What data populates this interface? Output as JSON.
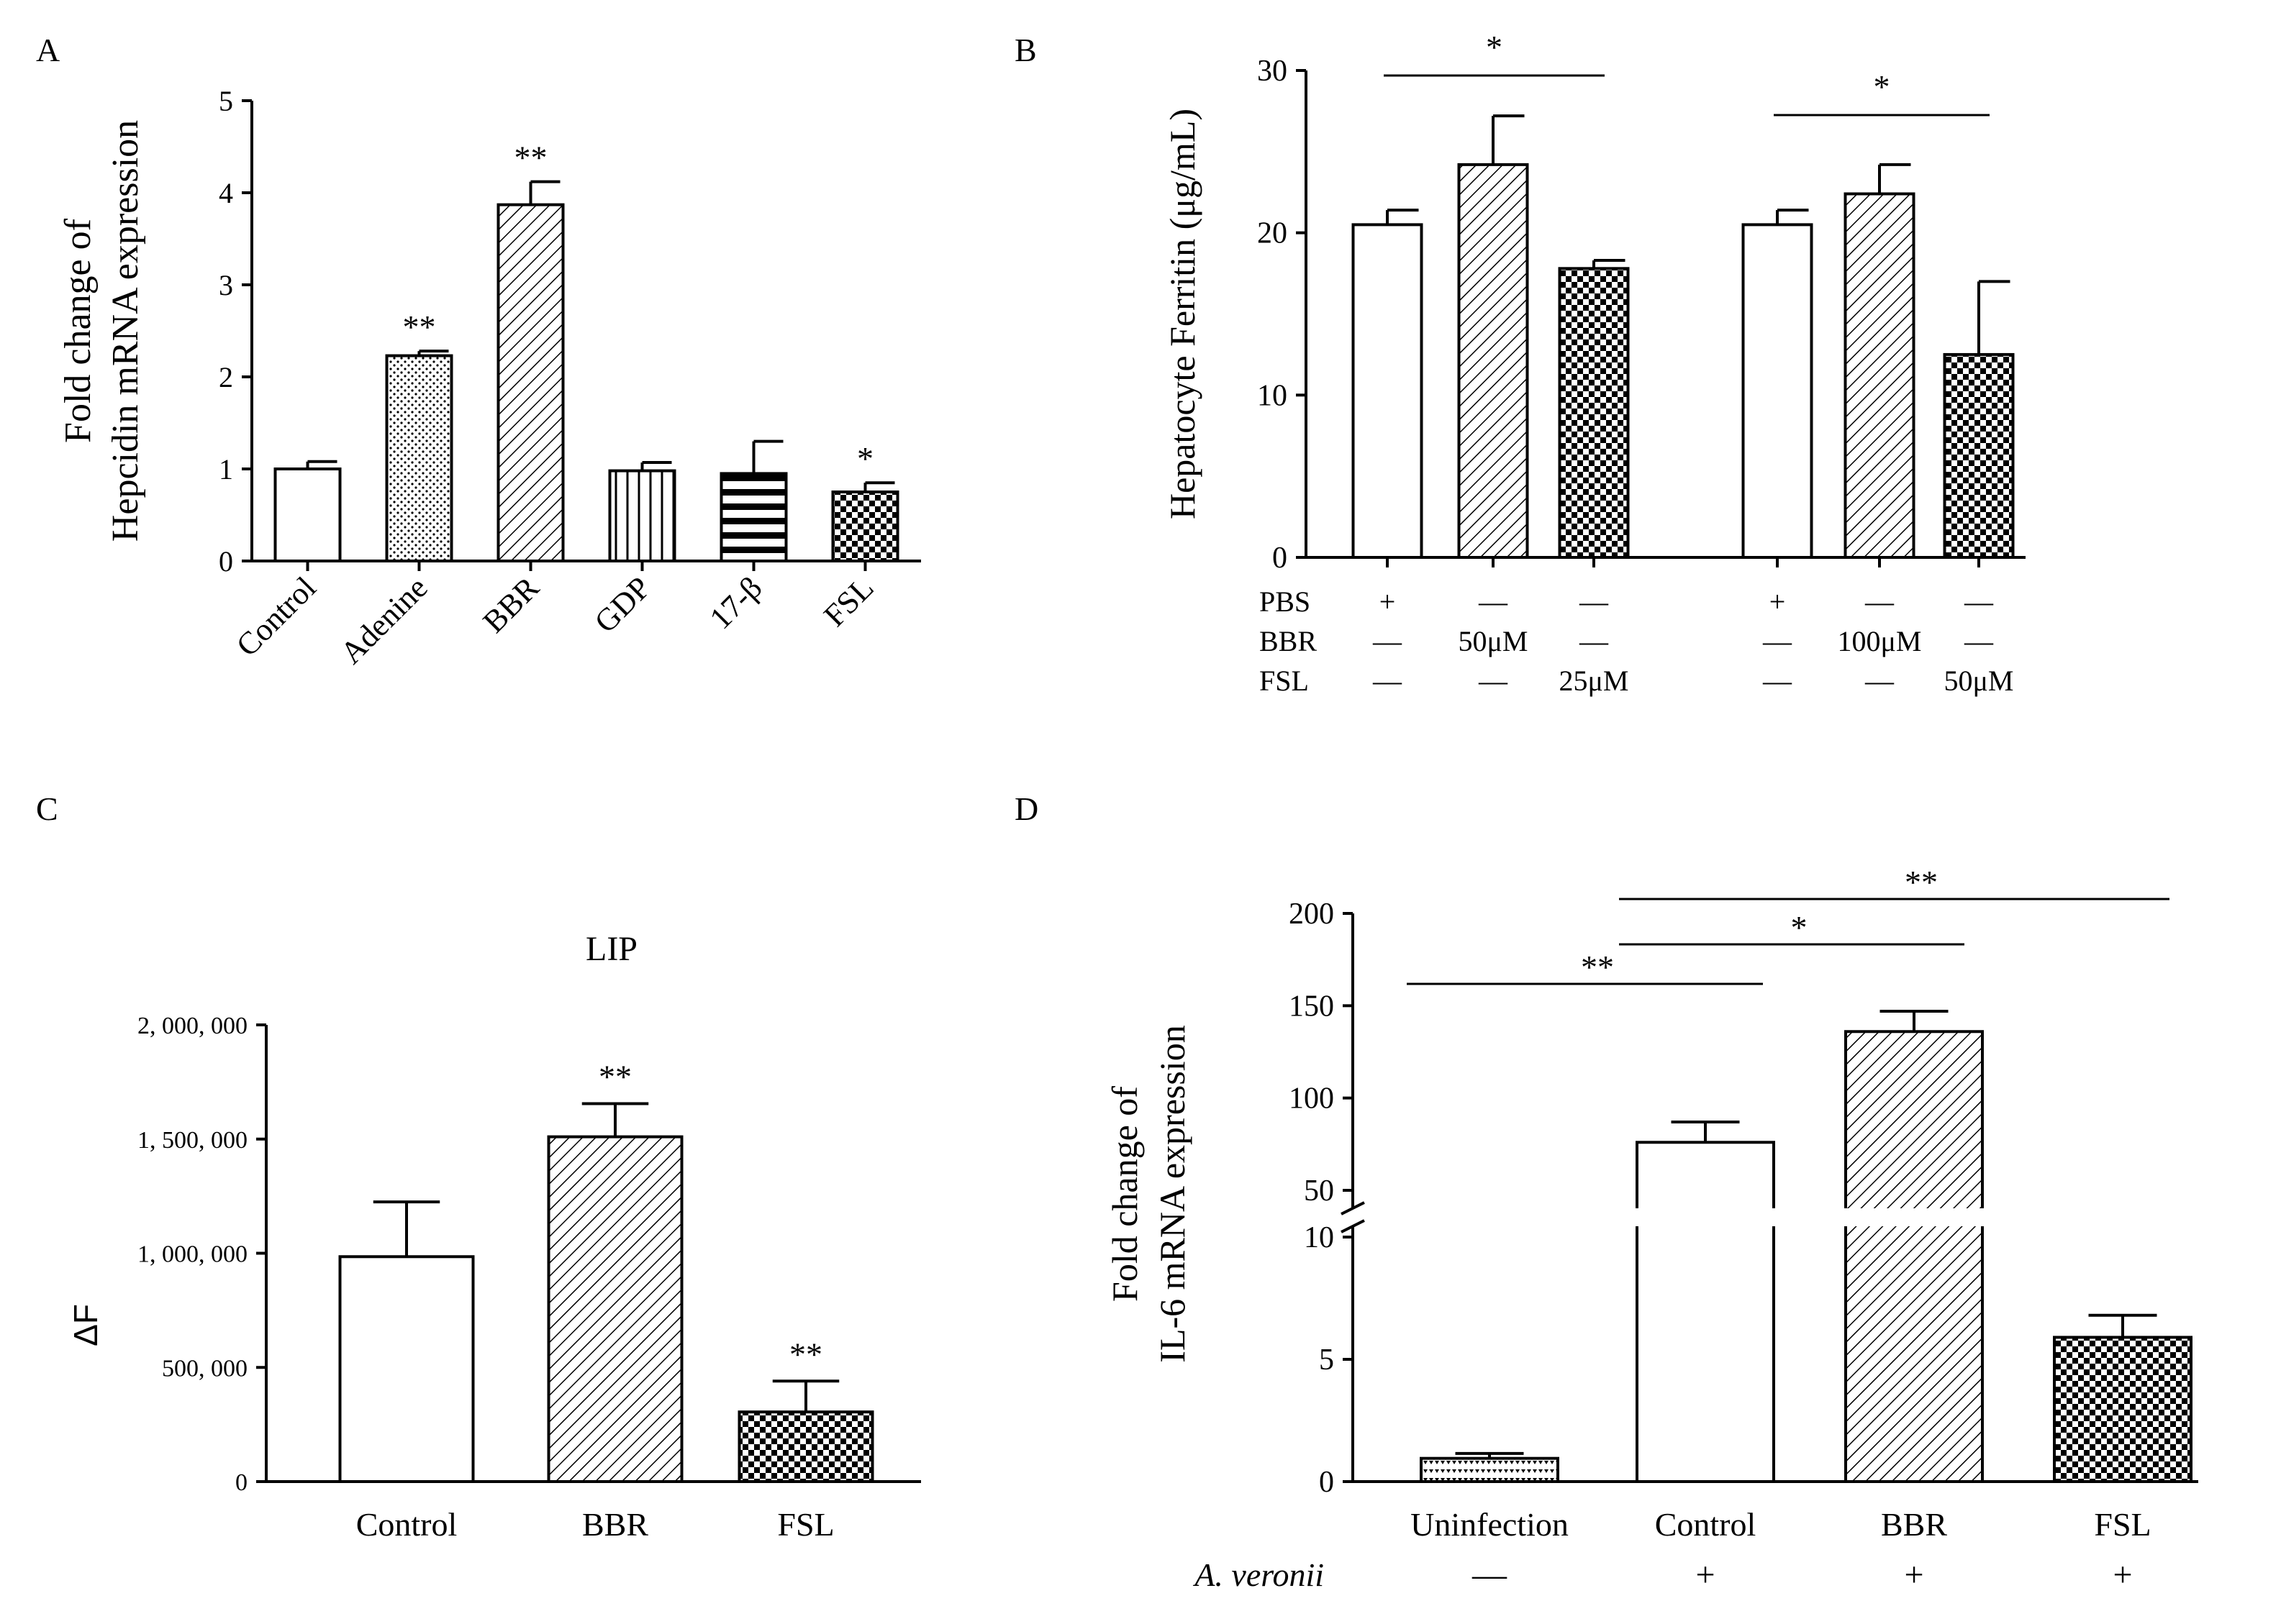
{
  "chart_data": [
    {
      "panel": "A",
      "type": "bar",
      "ylabel_lines": [
        "Fold change of",
        "Hepcidin mRNA expression"
      ],
      "ylim": [
        0,
        5
      ],
      "yticks": [
        "0",
        "1",
        "2",
        "3",
        "4",
        "5"
      ],
      "categories": [
        "Control",
        "Adenine",
        "BBR",
        "GDP",
        "17-β",
        "FSL"
      ],
      "values": [
        1.0,
        2.23,
        3.87,
        0.98,
        0.95,
        0.75
      ],
      "errors": [
        0.08,
        0.05,
        0.25,
        0.09,
        0.35,
        0.1
      ],
      "significance": [
        "",
        "**",
        "**",
        "",
        "",
        "*"
      ],
      "patterns": [
        "none",
        "dots",
        "diagonal",
        "vertical",
        "horizontal",
        "checker"
      ]
    },
    {
      "panel": "B",
      "type": "bar",
      "ylabel": "Hepatocyte Ferritin (μg/mL)",
      "ylim": [
        0,
        30
      ],
      "yticks": [
        "0",
        "10",
        "20",
        "30"
      ],
      "values": [
        20.5,
        24.2,
        17.8,
        20.5,
        22.4,
        12.5
      ],
      "errors": [
        0.9,
        3.0,
        0.5,
        0.9,
        1.8,
        4.5
      ],
      "patterns": [
        "none",
        "diagonal",
        "checker",
        "none",
        "diagonal",
        "checker"
      ],
      "condition_rows": [
        {
          "label": "PBS",
          "cells": [
            "+",
            "—",
            "—",
            "+",
            "—",
            "—"
          ]
        },
        {
          "label": "BBR",
          "cells": [
            "—",
            "50μM",
            "—",
            "—",
            "100μM",
            "—"
          ]
        },
        {
          "label": "FSL",
          "cells": [
            "—",
            "—",
            "25μM",
            "—",
            "—",
            "50μM"
          ]
        }
      ],
      "significance": [
        {
          "from": 0,
          "to": 2,
          "label": "*"
        },
        {
          "from": 3,
          "to": 5,
          "label": "*"
        }
      ]
    },
    {
      "panel": "C",
      "type": "bar",
      "title": "LIP",
      "ylabel": "ΔF",
      "ylim": [
        0,
        2000000
      ],
      "yticks": [
        "0",
        "500, 000",
        "1, 000, 000",
        "1, 500, 000",
        "2, 000, 000"
      ],
      "categories": [
        "Control",
        "BBR",
        "FSL"
      ],
      "values": [
        985000,
        1510000,
        305000
      ],
      "errors": [
        240000,
        145000,
        135000
      ],
      "significance": [
        "",
        "**",
        "**"
      ],
      "patterns": [
        "none",
        "diagonal",
        "checker"
      ]
    },
    {
      "panel": "D",
      "type": "bar",
      "ylabel_lines": [
        "Fold change of",
        "IL-6 mRNA expression"
      ],
      "y_axis_break": {
        "lower": [
          0,
          10
        ],
        "upper": [
          50,
          200
        ]
      },
      "yticks_lower": [
        "0",
        "5",
        "10"
      ],
      "yticks_upper": [
        "50",
        "100",
        "150",
        "200"
      ],
      "categories": [
        "Uninfection",
        "Control",
        "BBR",
        "FSL"
      ],
      "values": [
        0.95,
        76,
        136,
        5.9
      ],
      "errors": [
        0.2,
        11,
        11,
        0.9
      ],
      "patterns": [
        "triangles",
        "none",
        "diagonal",
        "checker"
      ],
      "condition_label": "A. veronii",
      "condition_cells": [
        "—",
        "+",
        "+",
        "+"
      ],
      "significance": [
        {
          "from": 0,
          "to": 1,
          "label": "**"
        },
        {
          "from": 1,
          "to": 2,
          "label": "*"
        },
        {
          "from": 1,
          "to": 3,
          "label": "**"
        }
      ]
    }
  ]
}
